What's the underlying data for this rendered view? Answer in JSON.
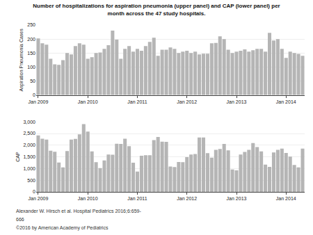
{
  "chart_data": [
    {
      "type": "bar",
      "title": "Number of hospitalizations for aspiration pneumonia (upper panel) and CAP (lower panel) per\nmonth across the 47 study hospitals.",
      "categories": [
        "Jan 2009",
        null,
        null,
        null,
        null,
        null,
        null,
        null,
        null,
        null,
        null,
        null,
        "Jan 2010",
        null,
        null,
        null,
        null,
        null,
        null,
        null,
        null,
        null,
        null,
        null,
        "Jan 2011",
        null,
        null,
        null,
        null,
        null,
        null,
        null,
        null,
        null,
        null,
        null,
        "Jan 2012",
        null,
        null,
        null,
        null,
        null,
        null,
        null,
        null,
        null,
        null,
        null,
        "Jan 2013",
        null,
        null,
        null,
        null,
        null,
        null,
        null,
        null,
        null,
        null,
        null,
        "Jan 2014",
        null,
        null,
        null,
        null
      ],
      "values": [
        202,
        185,
        180,
        130,
        110,
        108,
        125,
        150,
        145,
        175,
        185,
        180,
        130,
        135,
        150,
        152,
        165,
        178,
        230,
        198,
        130,
        165,
        175,
        155,
        165,
        158,
        175,
        190,
        205,
        140,
        162,
        162,
        170,
        165,
        150,
        155,
        158,
        150,
        155,
        145,
        148,
        148,
        185,
        186,
        210,
        200,
        162,
        150,
        155,
        158,
        163,
        155,
        160,
        165,
        165,
        155,
        222,
        195,
        200,
        165,
        133,
        155,
        150,
        147,
        140
      ],
      "color": "#b5b5b5",
      "ylabel": "Aspiration Pneumonia Cases",
      "ylim": [
        0,
        250
      ],
      "yticks": [
        0,
        50,
        100,
        150,
        200,
        250
      ],
      "grid": true
    },
    {
      "type": "bar",
      "categories": [
        "Jan 2009",
        null,
        null,
        null,
        null,
        null,
        null,
        null,
        null,
        null,
        null,
        null,
        "Jan 2010",
        null,
        null,
        null,
        null,
        null,
        null,
        null,
        null,
        null,
        null,
        null,
        "Jan 2011",
        null,
        null,
        null,
        null,
        null,
        null,
        null,
        null,
        null,
        null,
        null,
        "Jan 2012",
        null,
        null,
        null,
        null,
        null,
        null,
        null,
        null,
        null,
        null,
        null,
        "Jan 2013",
        null,
        null,
        null,
        null,
        null,
        null,
        null,
        null,
        null,
        null,
        null,
        "Jan 2014",
        null,
        null,
        null,
        null
      ],
      "values": [
        2420,
        2280,
        2240,
        1760,
        1720,
        1260,
        1050,
        1750,
        2240,
        2270,
        2460,
        2900,
        2580,
        1730,
        1270,
        1020,
        1350,
        1600,
        1590,
        2060,
        2050,
        2280,
        1960,
        1250,
        870,
        1550,
        1570,
        1570,
        2220,
        2350,
        2150,
        2140,
        1090,
        1065,
        1280,
        1270,
        1490,
        1600,
        1620,
        2330,
        2330,
        1660,
        1465,
        1800,
        1840,
        2050,
        1780,
        960,
        920,
        1600,
        1710,
        1800,
        2090,
        1920,
        1730,
        1165,
        1070,
        1690,
        1800,
        1850,
        1665,
        1510,
        1150,
        1050,
        1850
      ],
      "color": "#b5b5b5",
      "ylabel": "CAP",
      "ylim": [
        0,
        3000
      ],
      "yticks": [
        0,
        500,
        {
          "value": 1000,
          "label": "1,000"
        },
        {
          "value": 1500,
          "label": "1,500"
        },
        {
          "value": 2000,
          "label": "2,000"
        },
        {
          "value": 2500,
          "label": "2,500"
        },
        {
          "value": 3000,
          "label": "3,000"
        }
      ],
      "grid": true,
      "annotations": [
        "Alexander W. Hirsch et al. Hospital Pediatrics 2016;6:659-",
        "666",
        "©2016 by American Academy of Pediatrics"
      ]
    }
  ]
}
